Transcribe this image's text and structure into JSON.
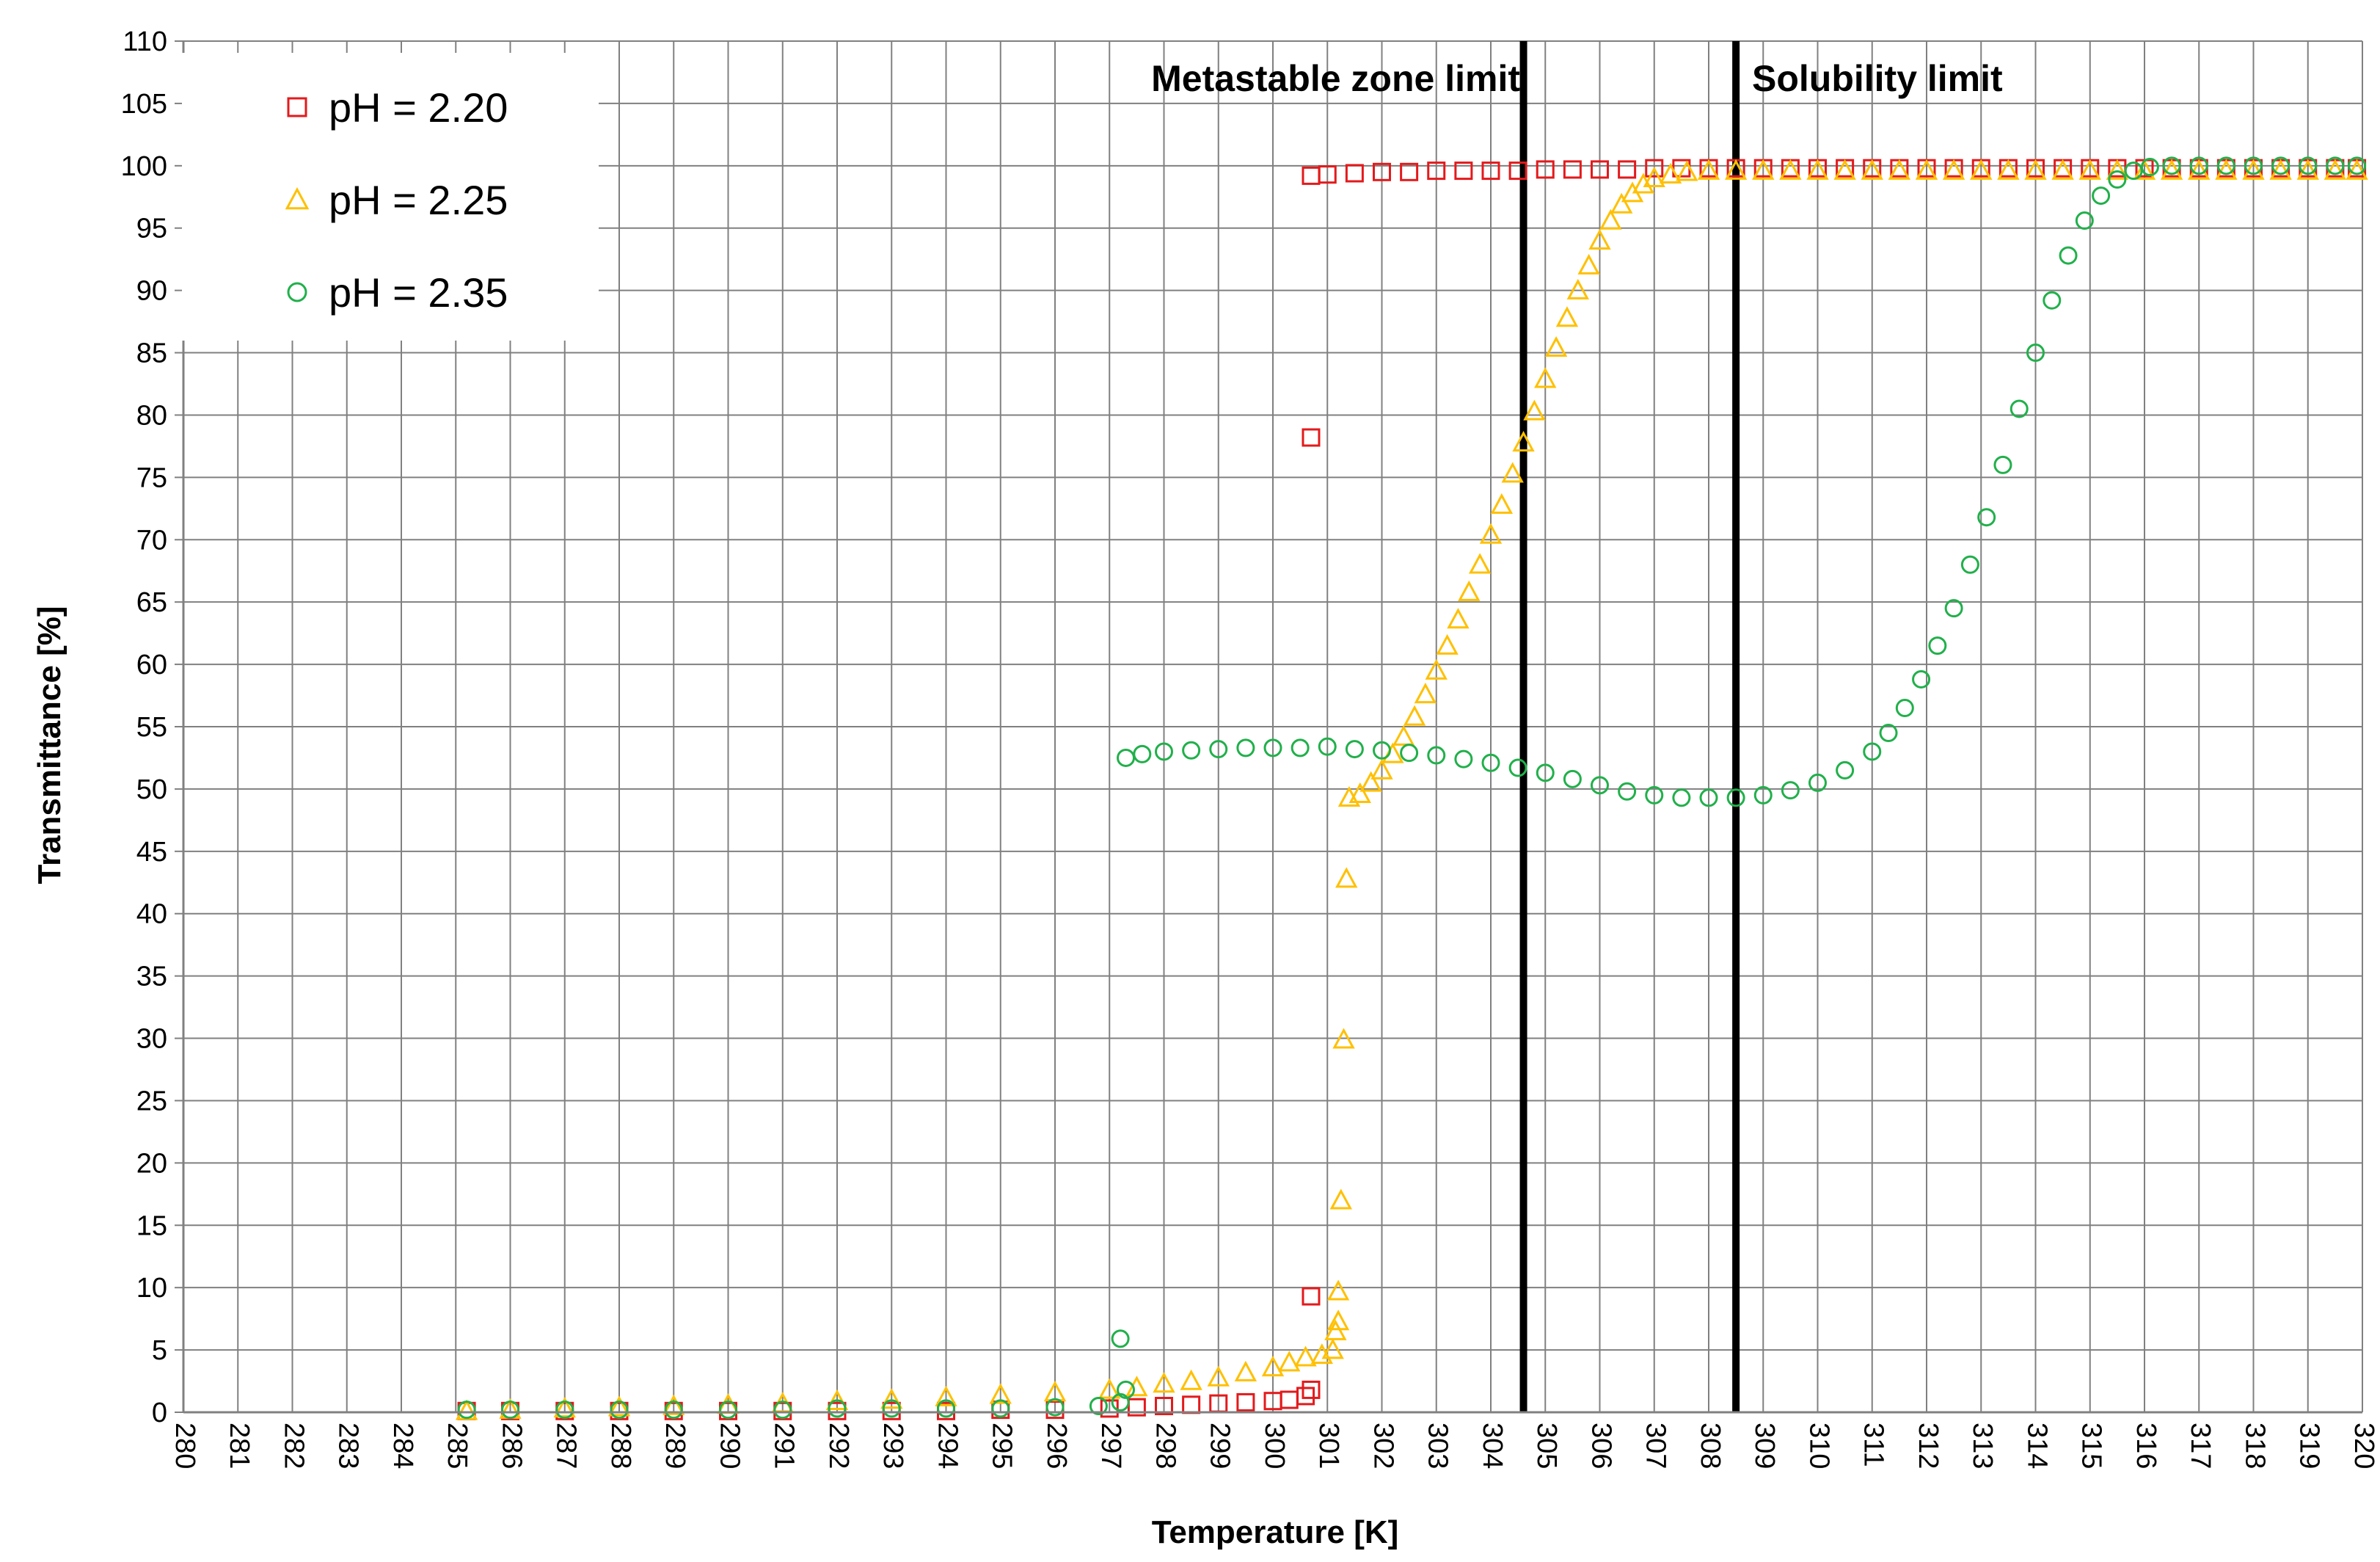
{
  "chart_data": {
    "type": "scatter",
    "title": "",
    "xlabel": "Temperature [K]",
    "ylabel": "Transmittance [%]",
    "xlim": [
      280,
      320
    ],
    "ylim": [
      0,
      110
    ],
    "x_ticks": [
      "280",
      "281",
      "282",
      "283",
      "284",
      "285",
      "286",
      "287",
      "288",
      "289",
      "290",
      "291",
      "292",
      "293",
      "294",
      "295",
      "296",
      "297",
      "298",
      "299",
      "300",
      "301",
      "302",
      "303",
      "304",
      "305",
      "306",
      "307",
      "308",
      "309",
      "310",
      "311",
      "312",
      "313",
      "314",
      "315",
      "316",
      "317",
      "318",
      "319",
      "320"
    ],
    "y_ticks": [
      "0",
      "5",
      "10",
      "15",
      "20",
      "25",
      "30",
      "35",
      "40",
      "45",
      "50",
      "55",
      "60",
      "65",
      "70",
      "75",
      "80",
      "85",
      "90",
      "95",
      "100",
      "105",
      "110"
    ],
    "grid": true,
    "legend_position": "top-left",
    "colors": {
      "pH_2_20": "#e31a1c",
      "pH_2_25": "#ffc000",
      "pH_2_35": "#21b04b",
      "limit_line": "#000000",
      "grid": "#808080"
    },
    "annotations": [
      {
        "text": "Metastable zone limit",
        "x": 304.6
      },
      {
        "text": "Solubility limit",
        "x": 308.5
      }
    ],
    "series": [
      {
        "name": "pH = 2.20",
        "marker": "square",
        "color": "#e31a1c",
        "points": [
          [
            285.2,
            0.1
          ],
          [
            286,
            0.1
          ],
          [
            287,
            0.1
          ],
          [
            288,
            0.1
          ],
          [
            289,
            0.1
          ],
          [
            290,
            0.1
          ],
          [
            291,
            0.1
          ],
          [
            292,
            0.1
          ],
          [
            293,
            0.1
          ],
          [
            294,
            0.1
          ],
          [
            295,
            0.2
          ],
          [
            296,
            0.2
          ],
          [
            297,
            0.3
          ],
          [
            297.5,
            0.4
          ],
          [
            298,
            0.5
          ],
          [
            298.5,
            0.6
          ],
          [
            299,
            0.7
          ],
          [
            299.5,
            0.8
          ],
          [
            300,
            0.9
          ],
          [
            300.3,
            1.0
          ],
          [
            300.6,
            1.3
          ],
          [
            300.7,
            1.8
          ],
          [
            300.7,
            9.3
          ],
          [
            300.7,
            78.2
          ],
          [
            300.7,
            99.2
          ],
          [
            301,
            99.3
          ],
          [
            301.5,
            99.4
          ],
          [
            302,
            99.5
          ],
          [
            302.5,
            99.5
          ],
          [
            303,
            99.6
          ],
          [
            303.5,
            99.6
          ],
          [
            304,
            99.6
          ],
          [
            304.5,
            99.6
          ],
          [
            305,
            99.7
          ],
          [
            305.5,
            99.7
          ],
          [
            306,
            99.7
          ],
          [
            306.5,
            99.7
          ],
          [
            307,
            99.8
          ],
          [
            307.5,
            99.8
          ],
          [
            308,
            99.8
          ],
          [
            308.5,
            99.8
          ],
          [
            309,
            99.8
          ],
          [
            309.5,
            99.8
          ],
          [
            310,
            99.8
          ],
          [
            310.5,
            99.8
          ],
          [
            311,
            99.8
          ],
          [
            311.5,
            99.8
          ],
          [
            312,
            99.8
          ],
          [
            312.5,
            99.8
          ],
          [
            313,
            99.8
          ],
          [
            313.5,
            99.8
          ],
          [
            314,
            99.8
          ],
          [
            314.5,
            99.8
          ],
          [
            315,
            99.8
          ],
          [
            315.5,
            99.8
          ],
          [
            316,
            99.8
          ],
          [
            316.5,
            99.8
          ],
          [
            317,
            99.8
          ],
          [
            317.5,
            99.8
          ],
          [
            318,
            99.8
          ],
          [
            318.5,
            99.8
          ],
          [
            319,
            99.8
          ],
          [
            319.5,
            99.8
          ],
          [
            319.9,
            99.8
          ]
        ]
      },
      {
        "name": "pH = 2.25",
        "marker": "triangle",
        "color": "#ffc000",
        "points": [
          [
            285.2,
            0.1
          ],
          [
            286,
            0.2
          ],
          [
            287,
            0.3
          ],
          [
            288,
            0.4
          ],
          [
            289,
            0.5
          ],
          [
            290,
            0.6
          ],
          [
            291,
            0.7
          ],
          [
            292,
            0.9
          ],
          [
            293,
            1.0
          ],
          [
            294,
            1.2
          ],
          [
            295,
            1.4
          ],
          [
            296,
            1.6
          ],
          [
            297,
            1.8
          ],
          [
            297.5,
            2.0
          ],
          [
            298,
            2.3
          ],
          [
            298.5,
            2.5
          ],
          [
            299,
            2.8
          ],
          [
            299.5,
            3.2
          ],
          [
            300,
            3.6
          ],
          [
            300.3,
            4.0
          ],
          [
            300.6,
            4.4
          ],
          [
            300.9,
            4.6
          ],
          [
            301.1,
            5.0
          ],
          [
            301.15,
            6.5
          ],
          [
            301.2,
            7.3
          ],
          [
            301.2,
            9.7
          ],
          [
            301.25,
            17.0
          ],
          [
            301.3,
            29.9
          ],
          [
            301.35,
            42.8
          ],
          [
            301.4,
            49.3
          ],
          [
            301.6,
            49.6
          ],
          [
            301.8,
            50.5
          ],
          [
            302.0,
            51.5
          ],
          [
            302.2,
            52.8
          ],
          [
            302.4,
            54.2
          ],
          [
            302.6,
            55.8
          ],
          [
            302.8,
            57.6
          ],
          [
            303.0,
            59.5
          ],
          [
            303.2,
            61.5
          ],
          [
            303.4,
            63.6
          ],
          [
            303.6,
            65.8
          ],
          [
            303.8,
            68.0
          ],
          [
            304.0,
            70.4
          ],
          [
            304.2,
            72.8
          ],
          [
            304.4,
            75.3
          ],
          [
            304.6,
            77.8
          ],
          [
            304.8,
            80.3
          ],
          [
            305.0,
            82.9
          ],
          [
            305.2,
            85.4
          ],
          [
            305.4,
            87.8
          ],
          [
            305.6,
            90.0
          ],
          [
            305.8,
            92.0
          ],
          [
            306.0,
            94.0
          ],
          [
            306.2,
            95.6
          ],
          [
            306.4,
            96.9
          ],
          [
            306.6,
            97.8
          ],
          [
            306.8,
            98.5
          ],
          [
            307.0,
            99.0
          ],
          [
            307.3,
            99.3
          ],
          [
            307.6,
            99.5
          ],
          [
            308.0,
            99.6
          ],
          [
            308.5,
            99.6
          ],
          [
            309,
            99.6
          ],
          [
            309.5,
            99.6
          ],
          [
            310,
            99.6
          ],
          [
            310.5,
            99.6
          ],
          [
            311,
            99.6
          ],
          [
            311.5,
            99.6
          ],
          [
            312,
            99.6
          ],
          [
            312.5,
            99.6
          ],
          [
            313,
            99.6
          ],
          [
            313.5,
            99.6
          ],
          [
            314,
            99.6
          ],
          [
            314.5,
            99.6
          ],
          [
            315,
            99.6
          ],
          [
            315.5,
            99.6
          ],
          [
            316,
            99.6
          ],
          [
            316.5,
            99.6
          ],
          [
            317,
            99.6
          ],
          [
            317.5,
            99.6
          ],
          [
            318,
            99.6
          ],
          [
            318.5,
            99.6
          ],
          [
            319,
            99.6
          ],
          [
            319.5,
            99.6
          ],
          [
            319.9,
            99.6
          ]
        ]
      },
      {
        "name": "pH = 2.35",
        "marker": "circle",
        "color": "#21b04b",
        "points": [
          [
            285.2,
            0.2
          ],
          [
            286,
            0.2
          ],
          [
            287,
            0.2
          ],
          [
            288,
            0.2
          ],
          [
            289,
            0.2
          ],
          [
            290,
            0.2
          ],
          [
            291,
            0.2
          ],
          [
            292,
            0.3
          ],
          [
            293,
            0.3
          ],
          [
            294,
            0.3
          ],
          [
            295,
            0.3
          ],
          [
            296,
            0.4
          ],
          [
            296.8,
            0.5
          ],
          [
            297.2,
            0.8
          ],
          [
            297.3,
            1.8
          ],
          [
            297.2,
            5.9
          ],
          [
            297.3,
            52.5
          ],
          [
            297.6,
            52.8
          ],
          [
            298,
            53.0
          ],
          [
            298.5,
            53.1
          ],
          [
            299,
            53.2
          ],
          [
            299.5,
            53.3
          ],
          [
            300,
            53.3
          ],
          [
            300.5,
            53.3
          ],
          [
            301,
            53.4
          ],
          [
            301.5,
            53.2
          ],
          [
            302,
            53.1
          ],
          [
            302.5,
            52.9
          ],
          [
            303,
            52.7
          ],
          [
            303.5,
            52.4
          ],
          [
            304,
            52.1
          ],
          [
            304.5,
            51.7
          ],
          [
            305,
            51.3
          ],
          [
            305.5,
            50.8
          ],
          [
            306,
            50.3
          ],
          [
            306.5,
            49.8
          ],
          [
            307,
            49.5
          ],
          [
            307.5,
            49.3
          ],
          [
            308,
            49.3
          ],
          [
            308.5,
            49.3
          ],
          [
            309,
            49.5
          ],
          [
            309.5,
            49.9
          ],
          [
            310,
            50.5
          ],
          [
            310.5,
            51.5
          ],
          [
            311,
            53.0
          ],
          [
            311.3,
            54.5
          ],
          [
            311.6,
            56.5
          ],
          [
            311.9,
            58.8
          ],
          [
            312.2,
            61.5
          ],
          [
            312.5,
            64.5
          ],
          [
            312.8,
            68.0
          ],
          [
            313.1,
            71.8
          ],
          [
            313.4,
            76.0
          ],
          [
            313.7,
            80.5
          ],
          [
            314.0,
            85.0
          ],
          [
            314.3,
            89.2
          ],
          [
            314.6,
            92.8
          ],
          [
            314.9,
            95.6
          ],
          [
            315.2,
            97.6
          ],
          [
            315.5,
            98.9
          ],
          [
            315.8,
            99.6
          ],
          [
            316.1,
            99.9
          ],
          [
            316.5,
            100.0
          ],
          [
            317,
            100.0
          ],
          [
            317.5,
            100.0
          ],
          [
            318,
            100.0
          ],
          [
            318.5,
            100.0
          ],
          [
            319,
            100.0
          ],
          [
            319.5,
            100.0
          ],
          [
            319.9,
            100.0
          ]
        ]
      }
    ]
  }
}
